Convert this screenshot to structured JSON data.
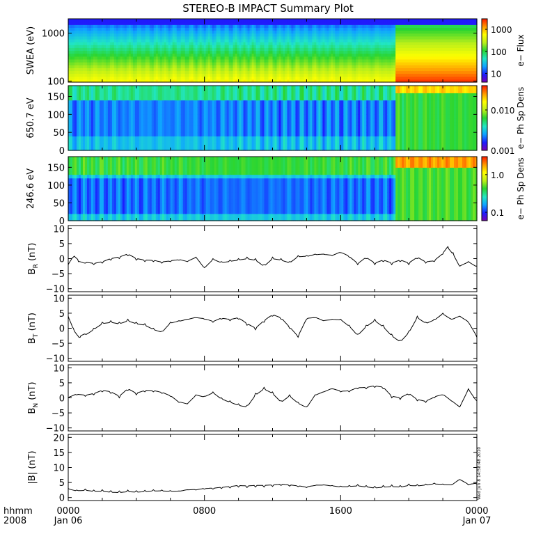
{
  "title": "STEREO-B IMPACT Summary Plot",
  "timestamp_note": "Wed Jun  8 14:58:48 2010",
  "x_axis": {
    "corner_label_1": "hhmm",
    "corner_label_2": "2008",
    "ticks": [
      {
        "time": "0000",
        "date": "Jan 06",
        "hour": 0
      },
      {
        "time": "0800",
        "date": "",
        "hour": 8
      },
      {
        "time": "1600",
        "date": "",
        "hour": 16
      },
      {
        "time": "0000",
        "date": "Jan 07",
        "hour": 24
      }
    ],
    "range_hours": [
      0,
      24
    ]
  },
  "colors": {
    "colormap": [
      "#7a00b4",
      "#1c1cff",
      "#0fa5ff",
      "#21e6c4",
      "#2ad531",
      "#b9ef1a",
      "#ffff00",
      "#ff9b00",
      "#ff1a00"
    ],
    "line": "#000000"
  },
  "chart_data": [
    {
      "type": "heatmap",
      "panel": "swea",
      "ylabel": "SWEA (eV)",
      "y_scale": "log",
      "ylim": [
        95,
        2000
      ],
      "yticks": [
        100,
        1000
      ],
      "ytick_labels": [
        "100",
        "1000"
      ],
      "colorbar_label": "e− Flux",
      "colorbar_scale": "log",
      "colorbar_range": [
        4,
        3000
      ],
      "colorbar_ticks": [
        10,
        100,
        1000
      ],
      "colorbar_tick_labels": [
        "10",
        "100",
        "1000"
      ]
    },
    {
      "type": "heatmap",
      "panel": "pad_650",
      "ylabel": "650.7 eV",
      "ylim": [
        0,
        180
      ],
      "yticks": [
        0,
        50,
        100,
        150
      ],
      "ytick_labels": [
        "0",
        "50",
        "100",
        "150"
      ],
      "colorbar_label": "e− Ph Sp Dens",
      "colorbar_scale": "log",
      "colorbar_range": [
        0.001,
        0.04
      ],
      "colorbar_ticks": [
        0.001,
        0.01
      ],
      "colorbar_tick_labels": [
        "0.001",
        "0.010"
      ]
    },
    {
      "type": "heatmap",
      "panel": "pad_246",
      "ylabel": "246.6 eV",
      "ylim": [
        0,
        180
      ],
      "yticks": [
        0,
        50,
        100,
        150
      ],
      "ytick_labels": [
        "0",
        "50",
        "100",
        "150"
      ],
      "colorbar_label": "e− Ph Sp Dens",
      "colorbar_scale": "log",
      "colorbar_range": [
        0.06,
        3
      ],
      "colorbar_ticks": [
        0.1,
        1.0
      ],
      "colorbar_tick_labels": [
        "0.1",
        "1.0"
      ]
    },
    {
      "type": "line",
      "panel": "br",
      "ylabel_main": "B",
      "ylabel_sub": "R",
      "ylabel_unit": " (nT)",
      "ylim": [
        -11,
        11
      ],
      "yticks": [
        -10,
        -5,
        0,
        5,
        10
      ],
      "ytick_labels": [
        "−10",
        "−5",
        "0",
        "5",
        "10"
      ],
      "x": [
        0,
        0.3,
        0.6,
        1,
        1.5,
        2,
        2.5,
        3,
        3.5,
        4,
        4.5,
        5,
        5.5,
        6,
        6.5,
        7,
        7.5,
        8,
        8.5,
        9,
        9.5,
        10,
        10.5,
        11,
        11.5,
        12,
        12.5,
        13,
        13.5,
        14,
        14.5,
        15,
        15.5,
        16,
        16.5,
        17,
        17.5,
        18,
        18.5,
        19,
        19.5,
        20,
        20.5,
        21,
        21.5,
        22,
        22.3,
        22.6,
        23,
        23.5,
        24
      ],
      "y": [
        -2,
        0.5,
        -1,
        -1.5,
        -2,
        -1.5,
        -0.5,
        0,
        1,
        -0.5,
        -1,
        -1,
        -1.5,
        -1,
        -0.5,
        -1,
        0.5,
        -3,
        0,
        -1,
        -0.5,
        0,
        0.5,
        0,
        -2,
        0.5,
        0,
        -1,
        1,
        1,
        1.5,
        1.5,
        1,
        2,
        0.5,
        -2,
        0,
        -2,
        -1,
        -2,
        -1,
        -2,
        0,
        -1.5,
        -1,
        1.5,
        4,
        2,
        -2.5,
        -1,
        -2.5
      ]
    },
    {
      "type": "line",
      "panel": "bt",
      "ylabel_main": "B",
      "ylabel_sub": "T",
      "ylabel_unit": " (nT)",
      "ylim": [
        -11,
        11
      ],
      "yticks": [
        -10,
        -5,
        0,
        5,
        10
      ],
      "ytick_labels": [
        "−10",
        "−5",
        "0",
        "5",
        "10"
      ],
      "x": [
        0,
        0.3,
        0.7,
        1,
        1.5,
        2,
        2.5,
        3,
        3.5,
        4,
        4.5,
        5,
        5.5,
        6,
        6.5,
        7,
        7.5,
        8,
        8.5,
        9,
        9.5,
        10,
        10.5,
        11,
        11.5,
        12,
        12.5,
        13,
        13.5,
        14,
        14.5,
        15,
        15.5,
        16,
        16.5,
        17,
        17.5,
        18,
        18.5,
        19,
        19.5,
        20,
        20.5,
        21,
        21.5,
        22,
        22.5,
        23,
        23.5,
        24
      ],
      "y": [
        4,
        0,
        -3,
        -2,
        0,
        2,
        2.5,
        2,
        3,
        2,
        1.5,
        0,
        -1,
        2,
        2.5,
        3,
        3.5,
        3,
        2,
        3,
        2.5,
        3,
        1,
        -0.5,
        2,
        4,
        3,
        0,
        -3,
        3,
        3.5,
        2.5,
        3,
        3,
        1,
        -2,
        1,
        3,
        1,
        -2,
        -4,
        -1,
        4,
        2,
        3,
        5,
        3,
        4,
        2,
        -3
      ]
    },
    {
      "type": "line",
      "panel": "bn",
      "ylabel_main": "B",
      "ylabel_sub": "N",
      "ylabel_unit": " (nT)",
      "ylim": [
        -11,
        11
      ],
      "yticks": [
        -10,
        -5,
        0,
        5,
        10
      ],
      "ytick_labels": [
        "−10",
        "−5",
        "0",
        "5",
        "10"
      ],
      "x": [
        0,
        0.5,
        1,
        1.5,
        2,
        2.5,
        3,
        3.5,
        4,
        4.5,
        5,
        5.5,
        6,
        6.5,
        7,
        7.5,
        8,
        8.5,
        9,
        9.5,
        10,
        10.5,
        11,
        11.5,
        12,
        12.5,
        13,
        13.5,
        14,
        14.5,
        15,
        15.5,
        16,
        16.5,
        17,
        17.5,
        18,
        18.5,
        19,
        19.5,
        20,
        20.5,
        21,
        21.5,
        22,
        22.5,
        23,
        23.5,
        24
      ],
      "y": [
        0,
        1,
        0.5,
        1,
        2,
        1.5,
        0,
        2.5,
        1,
        2,
        2,
        1.5,
        0.5,
        -1.5,
        -2,
        1,
        0.5,
        2,
        0,
        -1,
        -2,
        -2.5,
        1.5,
        3.5,
        2,
        -1,
        1,
        -1.5,
        -3,
        1,
        2,
        3,
        2,
        2,
        3,
        3,
        3.5,
        3,
        0,
        -0.5,
        1,
        -1,
        -1.5,
        0,
        1,
        -1,
        -3,
        3,
        -1
      ]
    },
    {
      "type": "line",
      "panel": "bmag",
      "ylabel_main": "|B|",
      "ylabel_sub": "",
      "ylabel_unit": " (nT)",
      "ylim": [
        -1,
        21
      ],
      "yticks": [
        0,
        5,
        10,
        15,
        20
      ],
      "ytick_labels": [
        "0",
        "5",
        "10",
        "15",
        "20"
      ],
      "x": [
        0,
        0.5,
        1,
        1.5,
        2,
        2.5,
        3,
        3.5,
        4,
        4.5,
        5,
        5.5,
        6,
        6.5,
        7,
        7.5,
        8,
        8.5,
        9,
        9.5,
        10,
        10.5,
        11,
        11.5,
        12,
        12.5,
        13,
        13.5,
        14,
        14.5,
        15,
        15.5,
        16,
        16.5,
        17,
        17.5,
        18,
        18.5,
        19,
        19.5,
        20,
        20.5,
        21,
        21.5,
        22,
        22.5,
        23,
        23.5,
        24
      ],
      "y": [
        3,
        2.5,
        2.8,
        2.5,
        2.6,
        2.3,
        2.2,
        2.5,
        2.3,
        2.4,
        2.6,
        2.5,
        2.3,
        2.2,
        2.6,
        2.5,
        2.8,
        2.8,
        3,
        3.2,
        3.5,
        3.3,
        3.5,
        3.5,
        3.7,
        4,
        3.8,
        3.6,
        3.3,
        4,
        4.2,
        4,
        3.8,
        4,
        4.3,
        4,
        3.7,
        4,
        4.2,
        4,
        4.5,
        4.3,
        4.5,
        4.8,
        4.5,
        4.2,
        6,
        4.2,
        4.5
      ]
    }
  ]
}
